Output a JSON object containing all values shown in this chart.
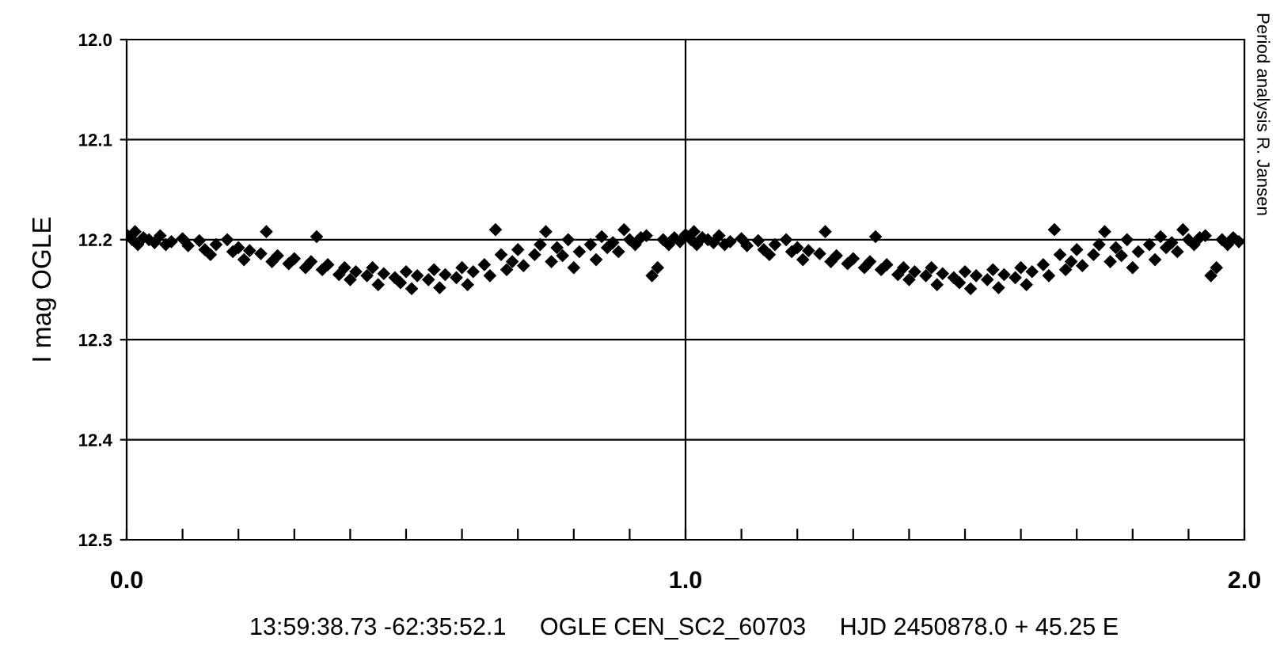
{
  "chart_data": {
    "type": "scatter",
    "ylabel": "I mag OGLE",
    "marker": "diamond",
    "grid": "y",
    "legend": false,
    "xlim": [
      0,
      2
    ],
    "ylim": [
      12.5,
      12.0
    ],
    "xticks": [
      {
        "value": 0,
        "label": "0.0"
      },
      {
        "value": 0.1,
        "label": null
      },
      {
        "value": 0.2,
        "label": null
      },
      {
        "value": 0.3,
        "label": null
      },
      {
        "value": 0.4,
        "label": null
      },
      {
        "value": 0.5,
        "label": null
      },
      {
        "value": 0.6,
        "label": null
      },
      {
        "value": 0.7,
        "label": null
      },
      {
        "value": 0.8,
        "label": null
      },
      {
        "value": 0.9,
        "label": null
      },
      {
        "value": 1,
        "label": "1.0"
      },
      {
        "value": 1.1,
        "label": null
      },
      {
        "value": 1.2,
        "label": null
      },
      {
        "value": 1.3,
        "label": null
      },
      {
        "value": 1.4,
        "label": null
      },
      {
        "value": 1.5,
        "label": null
      },
      {
        "value": 1.6,
        "label": null
      },
      {
        "value": 1.7,
        "label": null
      },
      {
        "value": 1.8,
        "label": null
      },
      {
        "value": 1.9,
        "label": null
      },
      {
        "value": 2,
        "label": "2.0"
      }
    ],
    "yticks": [
      {
        "value": 12.0,
        "label": "12.0"
      },
      {
        "value": 12.1,
        "label": "12.1"
      },
      {
        "value": 12.2,
        "label": "12.2"
      },
      {
        "value": 12.3,
        "label": "12.3"
      },
      {
        "value": 12.4,
        "label": "12.4"
      },
      {
        "value": 12.5,
        "label": "12.5"
      }
    ],
    "ref_lines": [
      {
        "axis": "x",
        "value": 1,
        "label": null,
        "color": "#000000"
      }
    ],
    "annotations": [
      "13:59:38.73 -62:35:52.1     OGLE CEN_SC2_60703     HJD 2450878.0 + 45.25 E",
      "Period analysis R. Jansen"
    ],
    "series": [
      {
        "color": "#000000",
        "x": [
          0.0,
          0.01,
          0.015,
          0.02,
          0.03,
          0.04,
          0.05,
          0.06,
          0.07,
          0.08,
          0.1,
          0.11,
          0.13,
          0.14,
          0.15,
          0.16,
          0.18,
          0.19,
          0.2,
          0.21,
          0.22,
          0.24,
          0.25,
          0.26,
          0.27,
          0.29,
          0.3,
          0.32,
          0.33,
          0.34,
          0.35,
          0.36,
          0.38,
          0.39,
          0.4,
          0.41,
          0.43,
          0.44,
          0.45,
          0.46,
          0.48,
          0.49,
          0.5,
          0.51,
          0.52,
          0.54,
          0.55,
          0.56,
          0.57,
          0.59,
          0.6,
          0.61,
          0.62,
          0.64,
          0.65,
          0.66,
          0.67,
          0.68,
          0.69,
          0.7,
          0.71,
          0.73,
          0.74,
          0.75,
          0.76,
          0.77,
          0.78,
          0.79,
          0.8,
          0.81,
          0.83,
          0.84,
          0.85,
          0.86,
          0.87,
          0.88,
          0.89,
          0.9,
          0.91,
          0.92,
          0.93,
          0.94,
          0.95,
          0.96,
          0.97,
          0.98,
          0.99,
          1.0,
          1.01,
          1.015,
          1.02,
          1.03,
          1.04,
          1.05,
          1.06,
          1.07,
          1.08,
          1.1,
          1.11,
          1.13,
          1.14,
          1.15,
          1.16,
          1.18,
          1.19,
          1.2,
          1.21,
          1.22,
          1.24,
          1.25,
          1.26,
          1.27,
          1.29,
          1.3,
          1.32,
          1.33,
          1.34,
          1.35,
          1.36,
          1.38,
          1.39,
          1.4,
          1.41,
          1.43,
          1.44,
          1.45,
          1.46,
          1.48,
          1.49,
          1.5,
          1.51,
          1.52,
          1.54,
          1.55,
          1.56,
          1.57,
          1.59,
          1.6,
          1.61,
          1.62,
          1.64,
          1.65,
          1.66,
          1.67,
          1.68,
          1.69,
          1.7,
          1.71,
          1.73,
          1.74,
          1.75,
          1.76,
          1.77,
          1.78,
          1.79,
          1.8,
          1.81,
          1.83,
          1.84,
          1.85,
          1.86,
          1.87,
          1.88,
          1.89,
          1.9,
          1.91,
          1.92,
          1.93,
          1.94,
          1.95,
          1.96,
          1.97,
          1.98,
          1.99
        ],
        "values": [
          12.195,
          12.2,
          12.192,
          12.205,
          12.198,
          12.2,
          12.203,
          12.196,
          12.205,
          12.202,
          12.199,
          12.206,
          12.201,
          12.21,
          12.215,
          12.205,
          12.2,
          12.212,
          12.208,
          12.22,
          12.211,
          12.214,
          12.192,
          12.222,
          12.216,
          12.224,
          12.219,
          12.228,
          12.222,
          12.197,
          12.23,
          12.225,
          12.235,
          12.228,
          12.24,
          12.232,
          12.236,
          12.228,
          12.245,
          12.234,
          12.238,
          12.243,
          12.232,
          12.249,
          12.236,
          12.24,
          12.23,
          12.248,
          12.235,
          12.238,
          12.228,
          12.245,
          12.232,
          12.225,
          12.236,
          12.19,
          12.215,
          12.23,
          12.222,
          12.21,
          12.226,
          12.215,
          12.205,
          12.192,
          12.222,
          12.208,
          12.216,
          12.2,
          12.228,
          12.212,
          12.205,
          12.22,
          12.197,
          12.208,
          12.203,
          12.212,
          12.19,
          12.2,
          12.205,
          12.198,
          12.196,
          12.236,
          12.228,
          12.2,
          12.205,
          12.198,
          12.202,
          12.195,
          12.2,
          12.192,
          12.205,
          12.198,
          12.2,
          12.203,
          12.196,
          12.205,
          12.202,
          12.199,
          12.206,
          12.201,
          12.21,
          12.215,
          12.205,
          12.2,
          12.212,
          12.208,
          12.22,
          12.211,
          12.214,
          12.192,
          12.222,
          12.216,
          12.224,
          12.219,
          12.228,
          12.222,
          12.197,
          12.23,
          12.225,
          12.235,
          12.228,
          12.24,
          12.232,
          12.236,
          12.228,
          12.245,
          12.234,
          12.238,
          12.243,
          12.232,
          12.249,
          12.236,
          12.24,
          12.23,
          12.248,
          12.235,
          12.238,
          12.228,
          12.245,
          12.232,
          12.225,
          12.236,
          12.19,
          12.215,
          12.23,
          12.222,
          12.21,
          12.226,
          12.215,
          12.205,
          12.192,
          12.222,
          12.208,
          12.216,
          12.2,
          12.228,
          12.212,
          12.205,
          12.22,
          12.197,
          12.208,
          12.203,
          12.212,
          12.19,
          12.2,
          12.205,
          12.198,
          12.196,
          12.236,
          12.228,
          12.2,
          12.205,
          12.198,
          12.202
        ]
      }
    ]
  }
}
